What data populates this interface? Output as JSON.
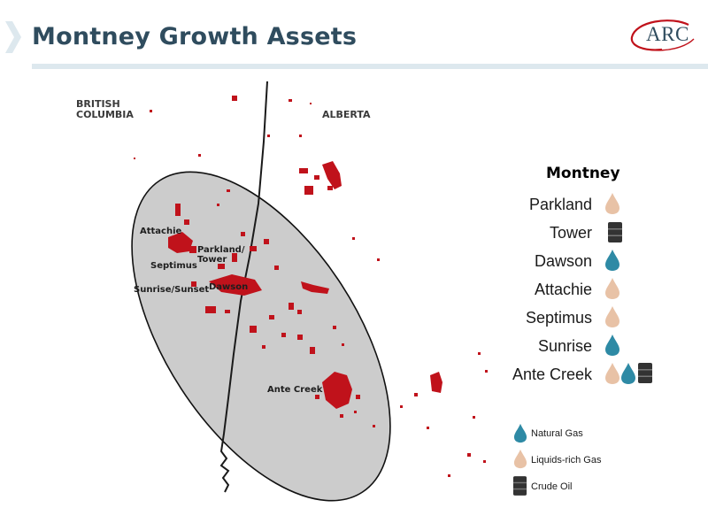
{
  "header": {
    "title": "Montney Growth Assets",
    "logo_text": "ARC"
  },
  "map": {
    "provinces": [
      "BRITISH COLUMBIA",
      "ALBERTA"
    ],
    "places": [
      "Attachie",
      "Parkland/ Tower",
      "Septimus",
      "Dawson",
      "Sunrise/Sunset",
      "Ante Creek"
    ],
    "colors": {
      "ellipse_fill": "#cccccc",
      "land_parcels": "#c0121b",
      "border_line": "#1a1a1a"
    }
  },
  "legend": {
    "title": "Montney",
    "assets": [
      {
        "name": "Parkland",
        "icons": [
          "liquids-rich-gas"
        ]
      },
      {
        "name": "Tower",
        "icons": [
          "crude-oil"
        ]
      },
      {
        "name": "Dawson",
        "icons": [
          "natural-gas"
        ]
      },
      {
        "name": "Attachie",
        "icons": [
          "liquids-rich-gas"
        ]
      },
      {
        "name": "Septimus",
        "icons": [
          "liquids-rich-gas"
        ]
      },
      {
        "name": "Sunrise",
        "icons": [
          "natural-gas"
        ]
      },
      {
        "name": "Ante Creek",
        "icons": [
          "liquids-rich-gas",
          "natural-gas",
          "crude-oil"
        ]
      }
    ],
    "key": [
      {
        "label": "Natural Gas",
        "icon": "natural-gas",
        "color": "#2e8aa5"
      },
      {
        "label": "Liquids-rich Gas",
        "icon": "liquids-rich-gas",
        "color": "#e8c2a6"
      },
      {
        "label": "Crude Oil",
        "icon": "crude-oil",
        "color": "#333333"
      }
    ]
  }
}
